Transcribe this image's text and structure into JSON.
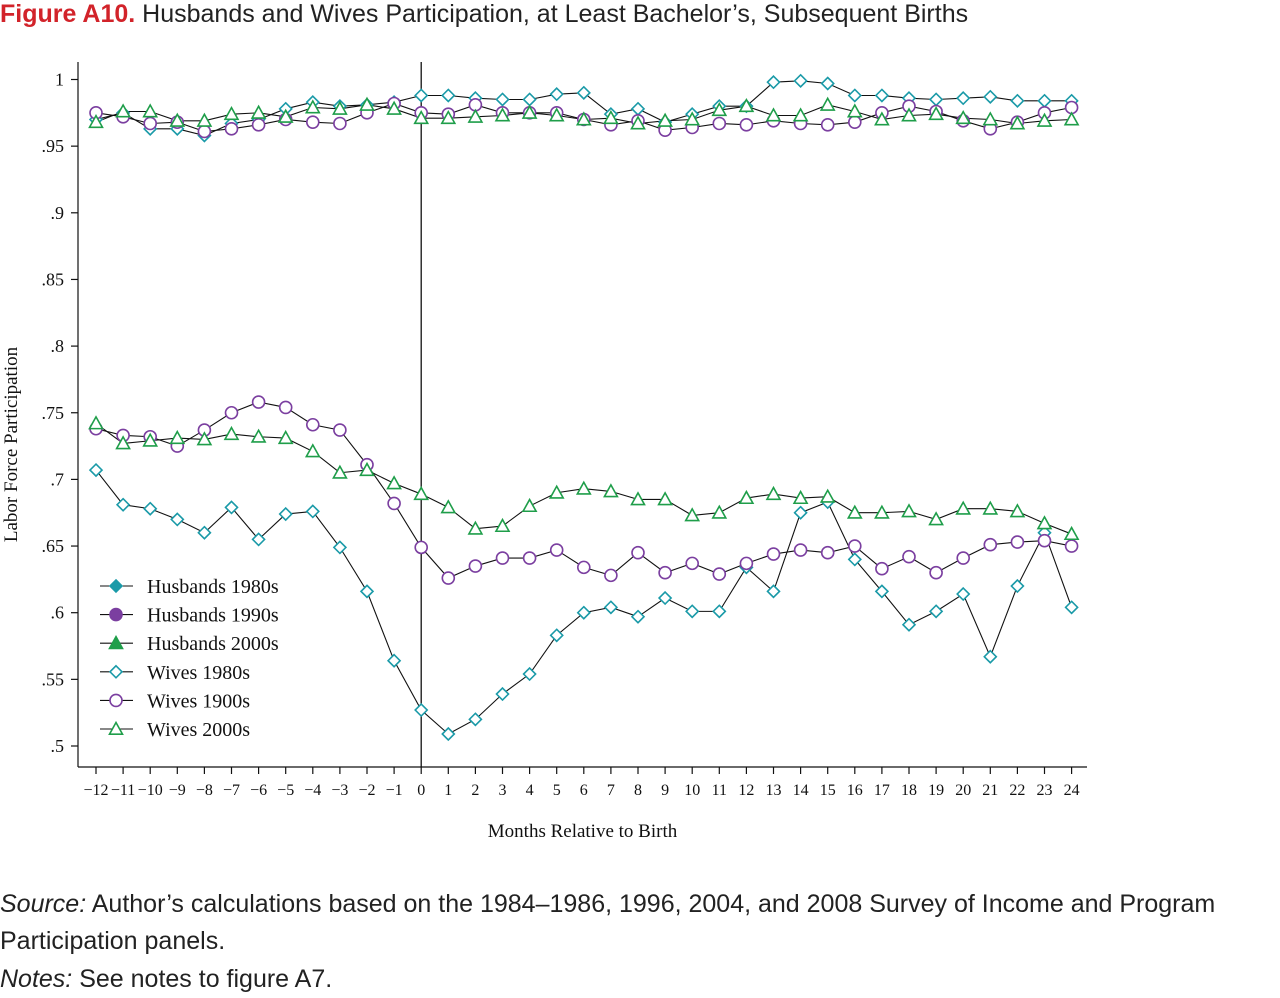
{
  "figure": {
    "label": "Figure A10.",
    "title": " Husbands and Wives Participation, at Least Bachelor’s, Subsequent Births"
  },
  "footer": {
    "source_label": "Source:",
    "source_text": " Author’s calculations based on the 1984–1986, 1996, 2004, and 2008 Survey of Income and Program Participation panels.",
    "notes_label": "Notes:",
    "notes_text": " See notes to figure A7."
  },
  "chart_data": {
    "type": "line",
    "xlabel": "Months Relative to Birth",
    "ylabel": "Labor Force Participation",
    "xlim": [
      -12,
      24
    ],
    "ylim": [
      0.5,
      1.0
    ],
    "grid": false,
    "legend_position": "bottom-left",
    "reference_line_x": 0,
    "x": [
      -12,
      -11,
      -10,
      -9,
      -8,
      -7,
      -6,
      -5,
      -4,
      -3,
      -2,
      -1,
      0,
      1,
      2,
      3,
      4,
      5,
      6,
      7,
      8,
      9,
      10,
      11,
      12,
      13,
      14,
      15,
      16,
      17,
      18,
      19,
      20,
      21,
      22,
      23,
      24
    ],
    "x_tick_labels": [
      "−12",
      "−11",
      "−10",
      "−9",
      "−8",
      "−7",
      "−6",
      "−5",
      "−4",
      "−3",
      "−2",
      "−1",
      "0",
      "1",
      "2",
      "3",
      "4",
      "5",
      "6",
      "7",
      "8",
      "9",
      "10",
      "11",
      "12",
      "13",
      "14",
      "15",
      "16",
      "17",
      "18",
      "19",
      "20",
      "21",
      "22",
      "23",
      "24"
    ],
    "y_ticks": [
      0.5,
      0.55,
      0.6,
      0.65,
      0.7,
      0.75,
      0.8,
      0.85,
      0.9,
      0.95,
      1.0
    ],
    "y_tick_labels": [
      ".5",
      ".55",
      ".6",
      ".65",
      ".7",
      ".75",
      ".8",
      ".85",
      ".9",
      ".95",
      "1"
    ],
    "series": [
      {
        "name": "Husbands 1980s",
        "color": "#1a9aa8",
        "marker": "diamond",
        "filled": true,
        "values": [
          null,
          null,
          null,
          null,
          null,
          null,
          null,
          null,
          null,
          null,
          null,
          null,
          null,
          null,
          null,
          null,
          null,
          null,
          null,
          null,
          null,
          null,
          null,
          null,
          null,
          null,
          null,
          null,
          null,
          null,
          null,
          null,
          null,
          null,
          null,
          null,
          null
        ]
      },
      {
        "name": "Husbands 1990s",
        "color": "#7b3fa0",
        "marker": "circle",
        "filled": true,
        "values": [
          null,
          null,
          null,
          null,
          null,
          null,
          null,
          null,
          null,
          null,
          null,
          null,
          null,
          null,
          null,
          null,
          null,
          null,
          null,
          null,
          null,
          null,
          null,
          null,
          null,
          null,
          null,
          null,
          null,
          null,
          null,
          null,
          null,
          null,
          null,
          null,
          null
        ]
      },
      {
        "name": "Husbands 2000s",
        "color": "#1f9e4a",
        "marker": "triangle",
        "filled": true,
        "values": [
          null,
          null,
          null,
          null,
          null,
          null,
          null,
          null,
          null,
          null,
          null,
          null,
          null,
          null,
          null,
          null,
          null,
          null,
          null,
          null,
          null,
          null,
          null,
          null,
          null,
          null,
          null,
          null,
          null,
          null,
          null,
          null,
          null,
          null,
          null,
          null,
          null
        ]
      },
      {
        "name": "Wives 1980s",
        "color": "#1a9aa8",
        "marker": "diamond",
        "filled": false,
        "values": [
          0.707,
          0.681,
          0.678,
          0.67,
          0.66,
          0.679,
          0.655,
          0.674,
          0.676,
          0.649,
          0.616,
          0.564,
          0.527,
          0.509,
          0.52,
          0.539,
          0.554,
          0.583,
          0.6,
          0.604,
          0.597,
          0.611,
          0.601,
          0.601,
          0.634,
          0.616,
          0.675,
          0.683,
          0.64,
          0.616,
          0.591,
          0.601,
          0.614,
          0.567,
          0.62,
          0.66,
          0.604
        ]
      },
      {
        "name": "Wives 1900s",
        "color": "#7b3fa0",
        "marker": "circle",
        "filled": false,
        "values": [
          0.738,
          0.733,
          0.732,
          0.725,
          0.737,
          0.75,
          0.758,
          0.754,
          0.741,
          0.737,
          0.711,
          0.682,
          0.649,
          0.626,
          0.635,
          0.641,
          0.641,
          0.647,
          0.634,
          0.628,
          0.645,
          0.63,
          0.637,
          0.629,
          0.637,
          0.644,
          0.647,
          0.645,
          0.65,
          0.633,
          0.642,
          0.63,
          0.641,
          0.651,
          0.653,
          0.654,
          0.65
        ]
      },
      {
        "name": "Wives 2000s",
        "color": "#1f9e4a",
        "marker": "triangle",
        "filled": false,
        "values": [
          0.742,
          0.727,
          0.729,
          0.731,
          0.73,
          0.734,
          0.732,
          0.731,
          0.721,
          0.705,
          0.707,
          0.697,
          0.689,
          0.679,
          0.663,
          0.665,
          0.68,
          0.69,
          0.693,
          0.691,
          0.685,
          0.685,
          0.673,
          0.675,
          0.686,
          0.689,
          0.686,
          0.687,
          0.675,
          0.675,
          0.676,
          0.67,
          0.678,
          0.678,
          0.676,
          0.667,
          0.659
        ]
      },
      {
        "name": "Husbands 1980s (upper)",
        "legend": false,
        "color": "#1a9aa8",
        "marker": "diamond",
        "filled": false,
        "values": [
          0.97,
          0.975,
          0.963,
          0.963,
          0.958,
          0.967,
          0.97,
          0.978,
          0.983,
          0.98,
          0.981,
          0.983,
          0.988,
          0.988,
          0.986,
          0.985,
          0.985,
          0.989,
          0.99,
          0.974,
          0.978,
          0.968,
          0.974,
          0.98,
          0.98,
          0.998,
          0.999,
          0.997,
          0.988,
          0.988,
          0.986,
          0.985,
          0.986,
          0.987,
          0.984,
          0.984,
          0.984
        ]
      },
      {
        "name": "Husbands 1990s (upper)",
        "legend": false,
        "color": "#7b3fa0",
        "marker": "circle",
        "filled": false,
        "values": [
          0.975,
          0.972,
          0.967,
          0.968,
          0.961,
          0.963,
          0.966,
          0.97,
          0.968,
          0.967,
          0.975,
          0.982,
          0.975,
          0.974,
          0.981,
          0.975,
          0.975,
          0.975,
          0.97,
          0.966,
          0.969,
          0.962,
          0.964,
          0.967,
          0.966,
          0.969,
          0.967,
          0.966,
          0.968,
          0.975,
          0.98,
          0.976,
          0.969,
          0.963,
          0.968,
          0.975,
          0.979
        ]
      },
      {
        "name": "Husbands 2000s (upper)",
        "legend": false,
        "color": "#1f9e4a",
        "marker": "triangle",
        "filled": false,
        "values": [
          0.968,
          0.976,
          0.976,
          0.969,
          0.969,
          0.974,
          0.975,
          0.972,
          0.979,
          0.978,
          0.981,
          0.978,
          0.971,
          0.971,
          0.972,
          0.973,
          0.975,
          0.973,
          0.97,
          0.971,
          0.967,
          0.969,
          0.97,
          0.977,
          0.98,
          0.973,
          0.973,
          0.981,
          0.976,
          0.97,
          0.973,
          0.974,
          0.971,
          0.97,
          0.967,
          0.969,
          0.97
        ]
      }
    ]
  }
}
